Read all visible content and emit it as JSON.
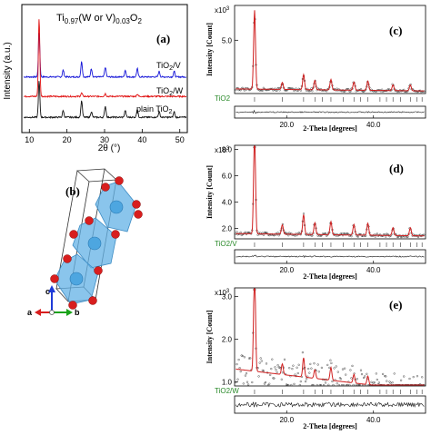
{
  "chart_data": [
    {
      "id": "a",
      "type": "line",
      "panel_label": "(a)",
      "title_main": "Ti",
      "title_sub1": "0.97",
      "title_mid": "(W or V)",
      "title_sub2": "0.03",
      "title_o": "O",
      "title_sub3": "2",
      "xlabel": "2θ (°)",
      "ylabel": "Intensity (a.u.)",
      "xlim": [
        8,
        52
      ],
      "xticks": [
        "10",
        "20",
        "30",
        "40",
        "50"
      ],
      "grid": false,
      "series": [
        {
          "name": "TiO2/V",
          "color": "#1515d8",
          "offset": 2.0,
          "peaks": [
            [
              12.6,
              1.6
            ],
            [
              19.0,
              0.25
            ],
            [
              23.9,
              0.55
            ],
            [
              26.5,
              0.3
            ],
            [
              30.2,
              0.35
            ],
            [
              35.5,
              0.25
            ],
            [
              38.7,
              0.3
            ],
            [
              44.5,
              0.2
            ],
            [
              48.5,
              0.2
            ]
          ]
        },
        {
          "name": "TiO2/W",
          "color": "#e01010",
          "offset": 1.3,
          "peaks": [
            [
              12.6,
              2.8
            ],
            [
              23.9,
              0.12
            ],
            [
              30.2,
              0.1
            ],
            [
              38.7,
              0.08
            ]
          ]
        },
        {
          "name": "plain TiO2",
          "color": "#111111",
          "offset": 0.55,
          "peaks": [
            [
              12.6,
              1.3
            ],
            [
              19.0,
              0.25
            ],
            [
              23.9,
              0.6
            ],
            [
              26.5,
              0.2
            ],
            [
              30.2,
              0.4
            ],
            [
              35.5,
              0.25
            ],
            [
              38.7,
              0.3
            ],
            [
              44.5,
              0.2
            ],
            [
              48.5,
              0.2
            ]
          ]
        }
      ],
      "legend": [
        {
          "main": "TiO",
          "sub": "2",
          "tail": "/V"
        },
        {
          "main": "TiO",
          "sub": "2",
          "tail": "/W"
        },
        {
          "main": "plain TiO",
          "sub": "2",
          "tail": ""
        }
      ]
    },
    {
      "id": "c",
      "type": "scatter",
      "panel_label": "(c)",
      "ylabel": "Intensity [Count]",
      "xlabel": "2-Theta [degrees]",
      "scale_note": "x10",
      "scale_exp": "3",
      "yticks": [
        "5.0"
      ],
      "xticks": [
        "20.0",
        "40.0"
      ],
      "xlim": [
        8,
        52
      ],
      "phase_label": "TiO2",
      "peaks": [
        [
          12.6,
          6.8
        ],
        [
          19.0,
          0.6
        ],
        [
          23.9,
          1.3
        ],
        [
          26.5,
          0.8
        ],
        [
          30.2,
          0.9
        ],
        [
          35.5,
          0.7
        ],
        [
          38.7,
          0.8
        ],
        [
          44.5,
          0.5
        ],
        [
          48.5,
          0.5
        ]
      ],
      "noise": 0.12
    },
    {
      "id": "d",
      "type": "scatter",
      "panel_label": "(d)",
      "ylabel": "Intensity [Count]",
      "xlabel": "2-Theta [degrees]",
      "scale_note": "x10",
      "scale_exp": "3",
      "yticks": [
        "2.0",
        "4.0",
        "6.0",
        "8.0"
      ],
      "xticks": [
        "20.0",
        "40.0"
      ],
      "xlim": [
        8,
        52
      ],
      "phase_label": "TiO2/V",
      "peaks": [
        [
          12.6,
          7.8
        ],
        [
          19.0,
          0.7
        ],
        [
          23.9,
          1.5
        ],
        [
          26.5,
          0.9
        ],
        [
          30.2,
          1.0
        ],
        [
          35.5,
          0.8
        ],
        [
          38.7,
          0.9
        ],
        [
          44.5,
          0.6
        ],
        [
          48.5,
          0.6
        ]
      ],
      "noise": 0.12
    },
    {
      "id": "e",
      "type": "scatter",
      "panel_label": "(e)",
      "ylabel": "Intensity [Count]",
      "xlabel": "2-Theta [degrees]",
      "scale_note": "x10",
      "scale_exp": "3",
      "yticks": [
        "1.0",
        "2.0",
        "3.0"
      ],
      "xticks": [
        "20.0",
        "40.0"
      ],
      "xlim": [
        8,
        52
      ],
      "phase_label": "TiO2/W",
      "peaks": [
        [
          12.6,
          2.5
        ],
        [
          19.0,
          0.25
        ],
        [
          23.9,
          0.45
        ],
        [
          26.5,
          0.2
        ],
        [
          30.2,
          0.3
        ],
        [
          35.5,
          0.2
        ],
        [
          38.7,
          0.2
        ]
      ],
      "noise": 0.35
    }
  ],
  "structure": {
    "panel_label": "(b)",
    "axes": {
      "a": "a",
      "b": "b",
      "c": "c"
    },
    "colors": {
      "octahedron": "#63b1e6",
      "oxygen": "#d81e1e",
      "cell": "#333333",
      "a_axis": "#d81e1e",
      "b_axis": "#1aa31a",
      "c_axis": "#1e3bd8"
    }
  }
}
